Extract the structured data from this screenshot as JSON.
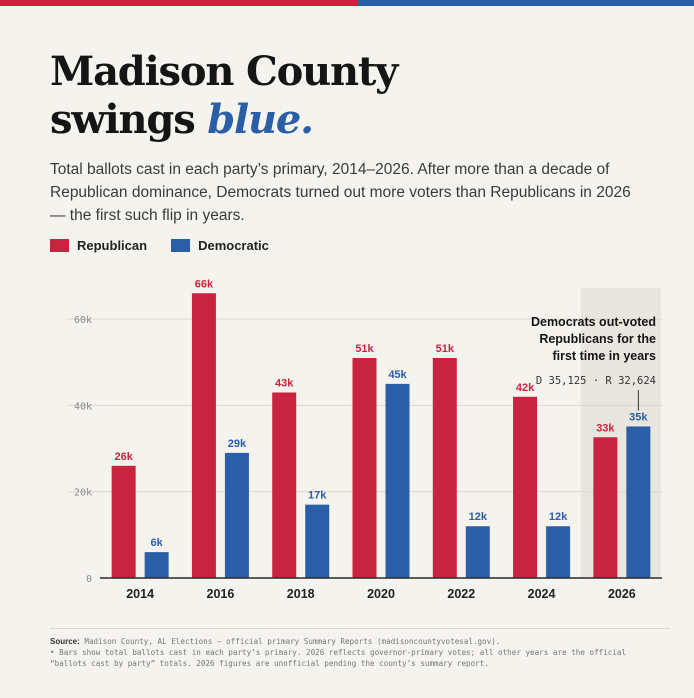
{
  "header": {
    "title_line1": "Madison County",
    "title_line2_prefix": "swings ",
    "title_line2_accent": "blue.",
    "subtitle": "Total ballots cast in each party’s primary, 2014–2026. After more than a decade of Republican dominance, Democrats turned out more voters than Republicans in 2026 — the first such flip in years."
  },
  "colors": {
    "republican": "#c9243f",
    "democratic": "#2a5ea6",
    "highlight_band": "#e9e6df",
    "grid": "#dcd8cf"
  },
  "chart_data": {
    "type": "bar",
    "title": "",
    "xlabel": "",
    "ylabel": "",
    "categories": [
      "2014",
      "2016",
      "2018",
      "2020",
      "2022",
      "2024",
      "2026"
    ],
    "series": [
      {
        "name": "Republican",
        "values": [
          26000,
          66000,
          43000,
          51000,
          51000,
          42000,
          32624
        ],
        "labels": [
          "26k",
          "66k",
          "43k",
          "51k",
          "51k",
          "42k",
          "33k"
        ]
      },
      {
        "name": "Democratic",
        "values": [
          6000,
          29000,
          17000,
          45000,
          12000,
          12000,
          35125
        ],
        "labels": [
          "6k",
          "29k",
          "17k",
          "45k",
          "12k",
          "12k",
          "35k"
        ]
      }
    ],
    "ylim": [
      0,
      70000
    ],
    "yticks": [
      0,
      20000,
      40000,
      60000
    ],
    "ytick_labels": [
      "0",
      "20k",
      "40k",
      "60k"
    ],
    "grid": true,
    "legend_position": "top-left",
    "highlight_category": "2026",
    "annotation": {
      "lines": [
        "Democrats out-voted",
        "Republicans for the",
        "first time in years"
      ],
      "detail": "D 35,125 · R 32,624"
    }
  },
  "footer": {
    "source_label": "Source:",
    "source_text": "Madison County, AL Elections — official primary Summary Reports (madisoncountyvotesal.gov).",
    "note_line1": "• Bars show total ballots cast in each party’s primary. 2026 reflects governor-primary votes; all other years are the official",
    "note_line2": "“ballots cast by party” totals. 2026 figures are unofficial pending the county’s summary report."
  }
}
